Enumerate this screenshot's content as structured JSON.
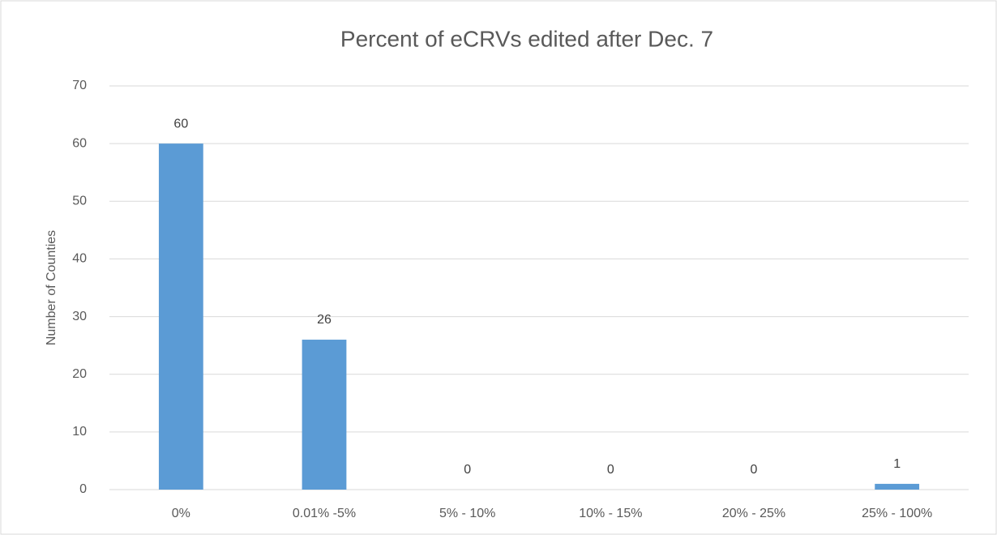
{
  "chart_data": {
    "type": "bar",
    "title": "Percent of eCRVs edited after Dec. 7",
    "y_label": "Number of Counties",
    "categories": [
      "0%",
      "0.01% -5%",
      "5% - 10%",
      "10% - 15%",
      "20% - 25%",
      "25% - 100%"
    ],
    "values": [
      60,
      26,
      0,
      0,
      0,
      1
    ],
    "color": "#5b9bd5",
    "ylim": [
      0,
      70
    ],
    "yticks": [
      0,
      10,
      20,
      30,
      40,
      50,
      60,
      70
    ],
    "grid": true
  }
}
